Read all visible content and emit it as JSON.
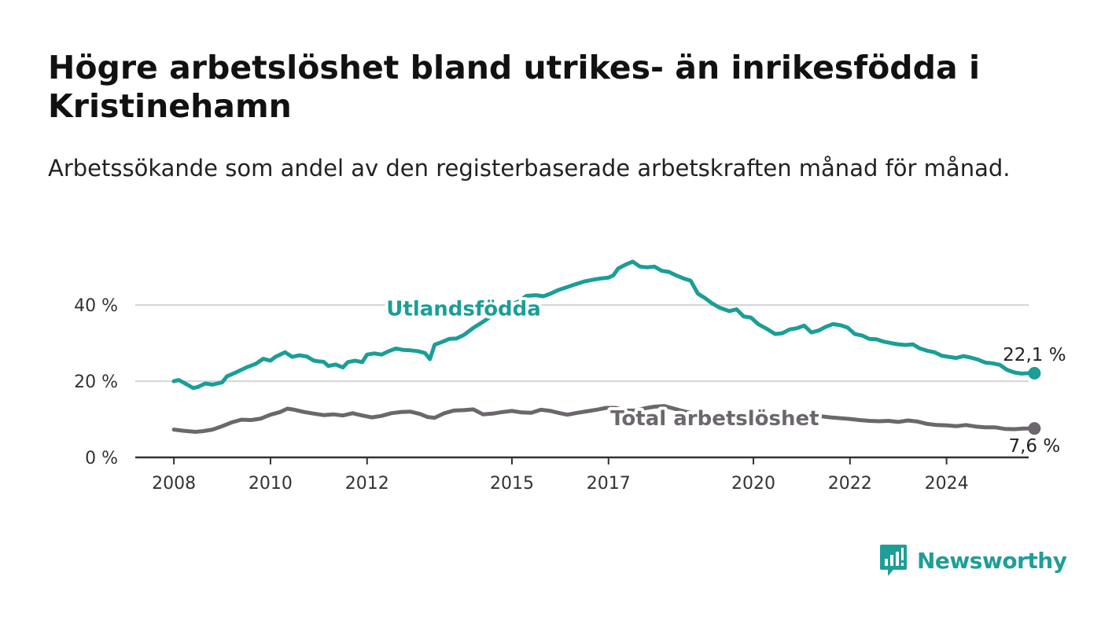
{
  "title": "Högre arbetslöshet bland utrikes- än inrikesfödda i Kristinehamn",
  "subtitle": "Arbetssökande som andel av den registerbaserade arbetskraften månad för månad.",
  "brand": {
    "name": "Newsworthy",
    "icon": "newsworthy-logo-icon",
    "color": "#1e9e98"
  },
  "chart_data": {
    "type": "line",
    "x_ticks": [
      2008,
      2010,
      2012,
      2015,
      2017,
      2020,
      2022,
      2024
    ],
    "x_tick_labels": [
      "2008",
      "2010",
      "2012",
      "2015",
      "2017",
      "2020",
      "2022",
      "2024"
    ],
    "xlim": [
      2007.2,
      2025.7
    ],
    "y_ticks": [
      0,
      20,
      40
    ],
    "y_tick_labels": [
      "0 %",
      "20 %",
      "40 %"
    ],
    "ylim": [
      0,
      52
    ],
    "grid": "horizontal",
    "series": [
      {
        "name": "Utlandsfödda",
        "color": "#1a9e96",
        "end_label": "22,1 %",
        "points": [
          [
            2008.0,
            20.0
          ],
          [
            2008.1,
            20.3
          ],
          [
            2008.25,
            19.3
          ],
          [
            2008.4,
            18.2
          ],
          [
            2008.5,
            18.5
          ],
          [
            2008.65,
            19.4
          ],
          [
            2008.8,
            19.1
          ],
          [
            2009.0,
            19.7
          ],
          [
            2009.1,
            21.3
          ],
          [
            2009.3,
            22.4
          ],
          [
            2009.5,
            23.6
          ],
          [
            2009.7,
            24.6
          ],
          [
            2009.85,
            25.9
          ],
          [
            2010.0,
            25.4
          ],
          [
            2010.1,
            26.4
          ],
          [
            2010.3,
            27.6
          ],
          [
            2010.45,
            26.4
          ],
          [
            2010.6,
            26.8
          ],
          [
            2010.75,
            26.5
          ],
          [
            2010.9,
            25.4
          ],
          [
            2011.0,
            25.2
          ],
          [
            2011.1,
            25.1
          ],
          [
            2011.2,
            24.0
          ],
          [
            2011.35,
            24.4
          ],
          [
            2011.5,
            23.6
          ],
          [
            2011.6,
            25.0
          ],
          [
            2011.75,
            25.4
          ],
          [
            2011.9,
            25.0
          ],
          [
            2012.0,
            27.0
          ],
          [
            2012.15,
            27.3
          ],
          [
            2012.3,
            27.0
          ],
          [
            2012.45,
            27.9
          ],
          [
            2012.6,
            28.6
          ],
          [
            2012.75,
            28.2
          ],
          [
            2012.9,
            28.1
          ],
          [
            2013.05,
            27.9
          ],
          [
            2013.2,
            27.4
          ],
          [
            2013.3,
            25.8
          ],
          [
            2013.4,
            29.6
          ],
          [
            2013.55,
            30.3
          ],
          [
            2013.7,
            31.1
          ],
          [
            2013.85,
            31.2
          ],
          [
            2014.0,
            32.1
          ],
          [
            2014.2,
            34.0
          ],
          [
            2014.4,
            35.6
          ],
          [
            2014.6,
            37.3
          ],
          [
            2014.8,
            38.8
          ],
          [
            2015.0,
            40.2
          ],
          [
            2015.15,
            41.0
          ],
          [
            2015.3,
            42.4
          ],
          [
            2015.5,
            42.6
          ],
          [
            2015.65,
            42.3
          ],
          [
            2015.8,
            43.0
          ],
          [
            2015.95,
            43.9
          ],
          [
            2016.1,
            44.5
          ],
          [
            2016.3,
            45.4
          ],
          [
            2016.5,
            46.2
          ],
          [
            2016.7,
            46.7
          ],
          [
            2016.85,
            47.0
          ],
          [
            2017.0,
            47.2
          ],
          [
            2017.1,
            47.8
          ],
          [
            2017.2,
            49.6
          ],
          [
            2017.35,
            50.6
          ],
          [
            2017.5,
            51.4
          ],
          [
            2017.65,
            50.1
          ],
          [
            2017.8,
            49.9
          ],
          [
            2017.95,
            50.1
          ],
          [
            2018.1,
            49.0
          ],
          [
            2018.25,
            48.7
          ],
          [
            2018.4,
            47.8
          ],
          [
            2018.55,
            47.0
          ],
          [
            2018.7,
            46.4
          ],
          [
            2018.85,
            43.0
          ],
          [
            2019.0,
            41.8
          ],
          [
            2019.15,
            40.4
          ],
          [
            2019.3,
            39.3
          ],
          [
            2019.5,
            38.4
          ],
          [
            2019.65,
            38.9
          ],
          [
            2019.8,
            37.0
          ],
          [
            2019.95,
            36.7
          ],
          [
            2020.1,
            35.0
          ],
          [
            2020.3,
            33.6
          ],
          [
            2020.45,
            32.4
          ],
          [
            2020.6,
            32.6
          ],
          [
            2020.75,
            33.6
          ],
          [
            2020.9,
            33.9
          ],
          [
            2021.05,
            34.6
          ],
          [
            2021.2,
            32.8
          ],
          [
            2021.35,
            33.3
          ],
          [
            2021.5,
            34.3
          ],
          [
            2021.65,
            35.0
          ],
          [
            2021.8,
            34.7
          ],
          [
            2021.95,
            34.1
          ],
          [
            2022.1,
            32.4
          ],
          [
            2022.25,
            32.0
          ],
          [
            2022.4,
            31.1
          ],
          [
            2022.55,
            31.0
          ],
          [
            2022.7,
            30.4
          ],
          [
            2022.85,
            30.0
          ],
          [
            2023.0,
            29.7
          ],
          [
            2023.15,
            29.5
          ],
          [
            2023.3,
            29.7
          ],
          [
            2023.45,
            28.6
          ],
          [
            2023.6,
            28.0
          ],
          [
            2023.75,
            27.6
          ],
          [
            2023.9,
            26.7
          ],
          [
            2024.05,
            26.4
          ],
          [
            2024.2,
            26.1
          ],
          [
            2024.35,
            26.6
          ],
          [
            2024.5,
            26.2
          ],
          [
            2024.65,
            25.7
          ],
          [
            2024.8,
            24.9
          ],
          [
            2024.95,
            24.7
          ],
          [
            2025.1,
            24.3
          ],
          [
            2025.25,
            23.0
          ],
          [
            2025.4,
            22.3
          ],
          [
            2025.55,
            22.0
          ],
          [
            2025.7,
            22.1
          ],
          [
            2025.82,
            22.1
          ]
        ]
      },
      {
        "name": "Total arbetslöshet",
        "color": "#6b676c",
        "end_label": "7,6 %",
        "points": [
          [
            2008.0,
            7.3
          ],
          [
            2008.2,
            7.0
          ],
          [
            2008.45,
            6.7
          ],
          [
            2008.6,
            6.9
          ],
          [
            2008.8,
            7.3
          ],
          [
            2009.0,
            8.2
          ],
          [
            2009.2,
            9.2
          ],
          [
            2009.4,
            9.9
          ],
          [
            2009.6,
            9.8
          ],
          [
            2009.8,
            10.2
          ],
          [
            2010.0,
            11.2
          ],
          [
            2010.2,
            11.9
          ],
          [
            2010.35,
            12.8
          ],
          [
            2010.5,
            12.5
          ],
          [
            2010.7,
            11.9
          ],
          [
            2010.9,
            11.5
          ],
          [
            2011.1,
            11.1
          ],
          [
            2011.3,
            11.3
          ],
          [
            2011.5,
            11.0
          ],
          [
            2011.7,
            11.6
          ],
          [
            2011.9,
            11.0
          ],
          [
            2012.1,
            10.5
          ],
          [
            2012.3,
            10.9
          ],
          [
            2012.5,
            11.6
          ],
          [
            2012.7,
            11.9
          ],
          [
            2012.9,
            12.0
          ],
          [
            2013.1,
            11.4
          ],
          [
            2013.25,
            10.6
          ],
          [
            2013.4,
            10.4
          ],
          [
            2013.6,
            11.6
          ],
          [
            2013.8,
            12.3
          ],
          [
            2014.0,
            12.4
          ],
          [
            2014.2,
            12.6
          ],
          [
            2014.4,
            11.3
          ],
          [
            2014.6,
            11.5
          ],
          [
            2014.8,
            11.9
          ],
          [
            2015.0,
            12.2
          ],
          [
            2015.2,
            11.8
          ],
          [
            2015.4,
            11.7
          ],
          [
            2015.6,
            12.5
          ],
          [
            2015.8,
            12.2
          ],
          [
            2016.0,
            11.6
          ],
          [
            2016.15,
            11.2
          ],
          [
            2016.35,
            11.7
          ],
          [
            2016.55,
            12.1
          ],
          [
            2016.75,
            12.5
          ],
          [
            2016.95,
            13.0
          ],
          [
            2017.15,
            13.0
          ],
          [
            2017.35,
            12.3
          ],
          [
            2017.55,
            12.3
          ],
          [
            2017.75,
            12.9
          ],
          [
            2017.95,
            13.3
          ],
          [
            2018.15,
            13.5
          ],
          [
            2018.3,
            13.0
          ],
          [
            2018.5,
            12.3
          ],
          [
            2018.7,
            11.7
          ],
          [
            2018.85,
            11.4
          ],
          [
            2019.0,
            11.3
          ],
          [
            2019.2,
            10.9
          ],
          [
            2019.4,
            10.8
          ],
          [
            2019.6,
            10.5
          ],
          [
            2019.8,
            10.6
          ],
          [
            2020.0,
            10.9
          ],
          [
            2020.2,
            11.2
          ],
          [
            2020.4,
            11.0
          ],
          [
            2020.6,
            11.3
          ],
          [
            2020.8,
            10.9
          ],
          [
            2021.0,
            11.0
          ],
          [
            2021.2,
            10.6
          ],
          [
            2021.4,
            10.8
          ],
          [
            2021.6,
            10.5
          ],
          [
            2021.8,
            10.3
          ],
          [
            2022.0,
            10.1
          ],
          [
            2022.2,
            9.8
          ],
          [
            2022.4,
            9.6
          ],
          [
            2022.6,
            9.5
          ],
          [
            2022.8,
            9.6
          ],
          [
            2023.0,
            9.3
          ],
          [
            2023.2,
            9.7
          ],
          [
            2023.4,
            9.4
          ],
          [
            2023.6,
            8.8
          ],
          [
            2023.8,
            8.5
          ],
          [
            2024.0,
            8.4
          ],
          [
            2024.2,
            8.2
          ],
          [
            2024.4,
            8.5
          ],
          [
            2024.6,
            8.1
          ],
          [
            2024.8,
            7.9
          ],
          [
            2025.0,
            7.9
          ],
          [
            2025.2,
            7.5
          ],
          [
            2025.4,
            7.4
          ],
          [
            2025.6,
            7.6
          ],
          [
            2025.82,
            7.6
          ]
        ]
      }
    ]
  }
}
